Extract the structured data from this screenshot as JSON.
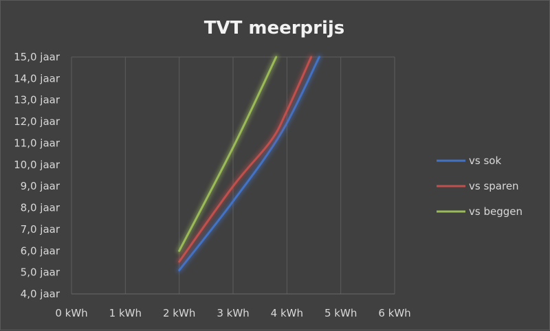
{
  "chart_data": {
    "type": "line",
    "title": "TVT meerprijs",
    "xlabel": "",
    "ylabel": "",
    "x_tick_labels": [
      "0 kWh",
      "1 kWh",
      "2 kWh",
      "3 kWh",
      "4 kWh",
      "5 kWh",
      "6 kWh"
    ],
    "y_tick_labels": [
      "4,0 jaar",
      "5,0 jaar",
      "6,0 jaar",
      "7,0 jaar",
      "8,0 jaar",
      "9,0 jaar",
      "10,0 jaar",
      "11,0 jaar",
      "12,0 jaar",
      "13,0 jaar",
      "14,0 jaar",
      "15,0 jaar"
    ],
    "xlim": [
      0,
      6
    ],
    "ylim": [
      4,
      15
    ],
    "grid": "vertical",
    "legend_position": "right",
    "series": [
      {
        "name": "vs sok",
        "color": "#4472c4",
        "points": [
          [
            2,
            5.1
          ],
          [
            3,
            8.3
          ],
          [
            3.9,
            11.5
          ],
          [
            4.6,
            15
          ]
        ]
      },
      {
        "name": "vs sparen",
        "color": "#c0504d",
        "points": [
          [
            2,
            5.5
          ],
          [
            3,
            9.0
          ],
          [
            3.7,
            11.1
          ],
          [
            4.0,
            12.5
          ],
          [
            4.45,
            15
          ]
        ]
      },
      {
        "name": "vs beggen",
        "color": "#9bbb59",
        "points": [
          [
            2,
            6.0
          ],
          [
            3,
            10.8
          ],
          [
            3.8,
            15
          ]
        ]
      }
    ]
  }
}
